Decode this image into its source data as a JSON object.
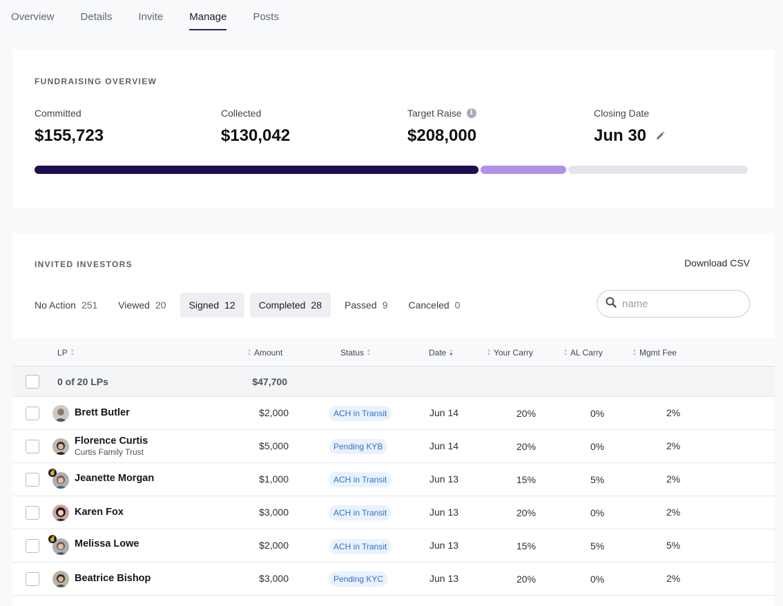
{
  "tabs": [
    "Overview",
    "Details",
    "Invite",
    "Manage",
    "Posts"
  ],
  "active_tab": "Manage",
  "overview": {
    "title": "FUNDRAISING OVERVIEW",
    "committed_label": "Committed",
    "committed_value": "$155,723",
    "collected_label": "Collected",
    "collected_value": "$130,042",
    "target_label": "Target Raise",
    "target_value": "$208,000",
    "closing_label": "Closing Date",
    "closing_value": "Jun 30",
    "progress": {
      "collected_fraction": 0.6252,
      "committed_fraction": 0.7487
    },
    "colors": {
      "collected": "#1f0d4f",
      "committed": "#b091e3",
      "remaining": "#e3e4ec"
    }
  },
  "investors": {
    "title": "INVITED INVESTORS",
    "download_label": "Download CSV",
    "search_placeholder": "name",
    "filters": [
      {
        "label": "No Action",
        "count": "251"
      },
      {
        "label": "Viewed",
        "count": "20"
      },
      {
        "label": "Signed",
        "count": "12"
      },
      {
        "label": "Completed",
        "count": "28"
      },
      {
        "label": "Passed",
        "count": "9"
      },
      {
        "label": "Canceled",
        "count": "0"
      }
    ],
    "columns": {
      "lp": "LP",
      "amount": "Amount",
      "status": "Status",
      "date": "Date",
      "your_carry": "Your Carry",
      "al_carry": "AL Carry",
      "mgmt_fee": "Mgmt Fee"
    },
    "summary": {
      "selection": "0 of 20 LPs",
      "amount": "$47,700"
    },
    "rows": [
      {
        "name": "Brett Butler",
        "entity": "",
        "amount": "$2,000",
        "status": "ACH in Transit",
        "date": "Jun 14",
        "your_carry": "20%",
        "al_carry": "0%",
        "mgmt_fee": "2%"
      },
      {
        "name": "Florence Curtis",
        "entity": "Curtis Family Trust",
        "amount": "$5,000",
        "status": "Pending KYB",
        "date": "Jun 14",
        "your_carry": "20%",
        "al_carry": "0%",
        "mgmt_fee": "2%"
      },
      {
        "name": "Jeanette Morgan",
        "entity": "",
        "amount": "$1,000",
        "status": "ACH in Transit",
        "date": "Jun 13",
        "your_carry": "15%",
        "al_carry": "5%",
        "mgmt_fee": "2%"
      },
      {
        "name": "Karen Fox",
        "entity": "",
        "amount": "$3,000",
        "status": "ACH in Transit",
        "date": "Jun 13",
        "your_carry": "20%",
        "al_carry": "0%",
        "mgmt_fee": "2%"
      },
      {
        "name": "Melissa Lowe",
        "entity": "",
        "amount": "$2,000",
        "status": "ACH in Transit",
        "date": "Jun 13",
        "your_carry": "15%",
        "al_carry": "5%",
        "mgmt_fee": "5%"
      },
      {
        "name": "Beatrice Bishop",
        "entity": "",
        "amount": "$3,000",
        "status": "Pending KYC",
        "date": "Jun 13",
        "your_carry": "20%",
        "al_carry": "0%",
        "mgmt_fee": "2%"
      }
    ]
  }
}
